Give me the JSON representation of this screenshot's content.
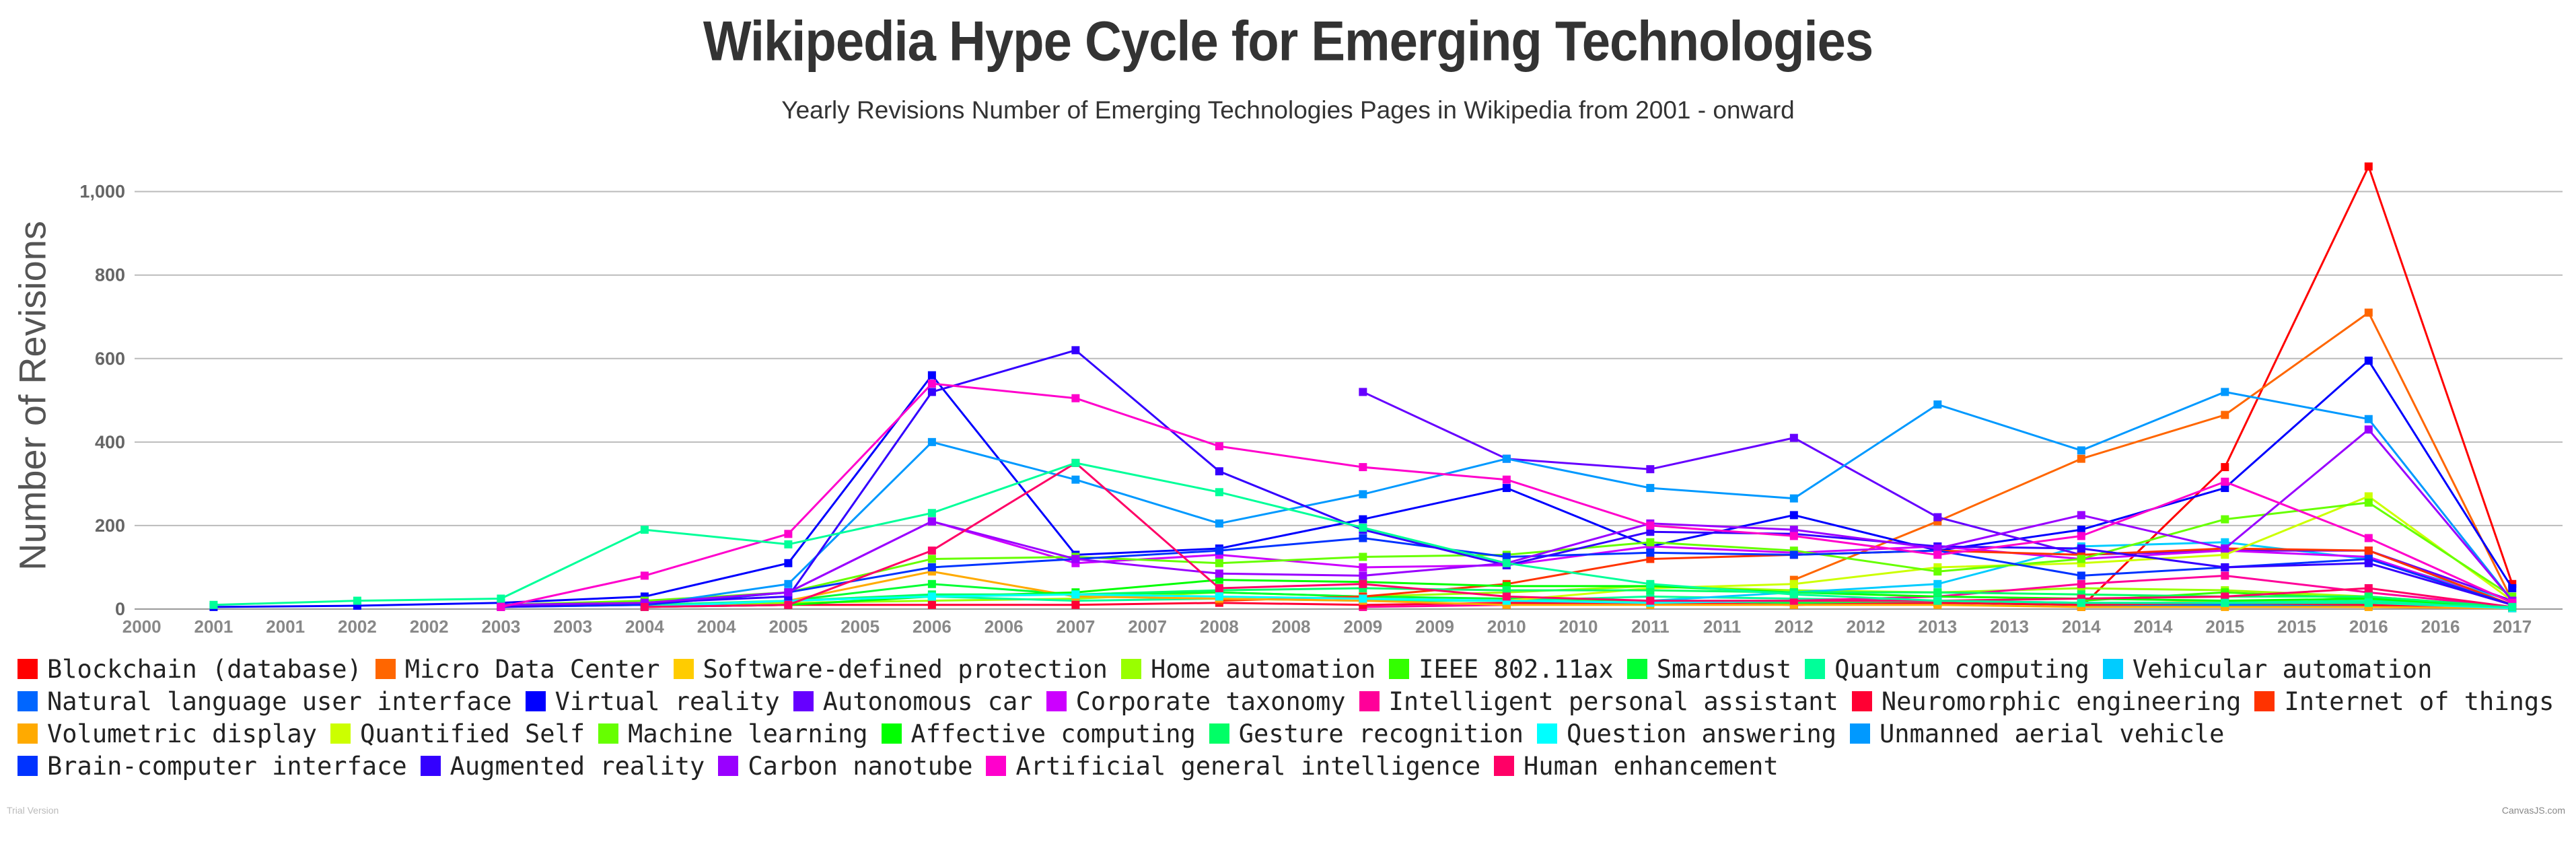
{
  "chart_data": {
    "type": "line",
    "title": "Wikipedia Hype Cycle for Emerging Technologies",
    "subtitle": "Yearly Revisions Number of Emerging Technologies Pages in Wikipedia from 2001 - onward",
    "ylabel": "Number of Revisions",
    "xlabel": "",
    "x": [
      2001,
      2002,
      2003,
      2004,
      2005,
      2006,
      2007,
      2008,
      2009,
      2010,
      2011,
      2012,
      2013,
      2014,
      2015,
      2016,
      2017
    ],
    "x_tick_labels": [
      "2000",
      "2001",
      "2001",
      "2002",
      "2002",
      "2003",
      "2003",
      "2004",
      "2004",
      "2005",
      "2005",
      "2006",
      "2006",
      "2007",
      "2007",
      "2008",
      "2008",
      "2009",
      "2009",
      "2010",
      "2010",
      "2011",
      "2011",
      "2012",
      "2012",
      "2013",
      "2013",
      "2014",
      "2014",
      "2015",
      "2015",
      "2016",
      "2016",
      "2017"
    ],
    "y_ticks": [
      0,
      200,
      400,
      600,
      800,
      1000
    ],
    "y_tick_labels": [
      "0",
      "200",
      "400",
      "600",
      "800",
      "1,000"
    ],
    "ylim": [
      0,
      1080
    ],
    "grid": true,
    "legend_position": "bottom",
    "series": [
      {
        "name": "Blockchain (database)",
        "color": "#ff0000",
        "values": [
          null,
          null,
          null,
          null,
          null,
          null,
          null,
          null,
          null,
          null,
          null,
          null,
          null,
          5,
          340,
          1060,
          60
        ]
      },
      {
        "name": "Micro Data Center",
        "color": "#ff6600",
        "values": [
          null,
          null,
          null,
          null,
          null,
          null,
          null,
          null,
          null,
          null,
          null,
          70,
          210,
          360,
          465,
          710,
          20
        ]
      },
      {
        "name": "Software-defined protection",
        "color": "#ffcc00",
        "values": [
          null,
          null,
          null,
          null,
          null,
          null,
          null,
          null,
          null,
          null,
          null,
          null,
          null,
          10,
          20,
          15,
          5
        ]
      },
      {
        "name": "Home automation",
        "color": "#99ff00",
        "values": [
          null,
          null,
          null,
          5,
          15,
          20,
          25,
          40,
          30,
          40,
          55,
          45,
          40,
          50,
          45,
          30,
          5
        ]
      },
      {
        "name": "IEEE 802.11ax",
        "color": "#33ff00",
        "values": [
          null,
          null,
          null,
          null,
          null,
          null,
          null,
          null,
          null,
          null,
          null,
          null,
          null,
          20,
          40,
          25,
          5
        ]
      },
      {
        "name": "Smartdust",
        "color": "#00ff33",
        "values": [
          null,
          null,
          null,
          5,
          20,
          60,
          35,
          40,
          30,
          25,
          20,
          15,
          15,
          10,
          10,
          10,
          2
        ]
      },
      {
        "name": "Quantum computing",
        "color": "#00ff99",
        "values": [
          null,
          null,
          null,
          10,
          20,
          30,
          20,
          25,
          20,
          20,
          30,
          25,
          20,
          15,
          15,
          20,
          5
        ]
      },
      {
        "name": "Vehicular automation",
        "color": "#00ccff",
        "values": [
          null,
          null,
          null,
          null,
          null,
          null,
          null,
          null,
          null,
          null,
          20,
          40,
          60,
          150,
          160,
          120,
          20
        ]
      },
      {
        "name": "Natural language user interface",
        "color": "#0066ff",
        "values": [
          null,
          null,
          null,
          null,
          null,
          null,
          null,
          null,
          null,
          10,
          15,
          10,
          15,
          10,
          10,
          10,
          2
        ]
      },
      {
        "name": "Virtual reality",
        "color": "#0000ff",
        "values": [
          5,
          8,
          15,
          30,
          110,
          560,
          130,
          145,
          215,
          290,
          150,
          225,
          140,
          190,
          290,
          595,
          50
        ]
      },
      {
        "name": "Autonomous car",
        "color": "#6600ff",
        "values": [
          null,
          null,
          null,
          null,
          null,
          null,
          null,
          null,
          520,
          360,
          335,
          410,
          220,
          130,
          140,
          140,
          20
        ]
      },
      {
        "name": "Corporate taxonomy",
        "color": "#cc00ff",
        "values": [
          null,
          null,
          5,
          10,
          40,
          210,
          110,
          130,
          100,
          105,
          150,
          135,
          150,
          120,
          140,
          125,
          10
        ]
      },
      {
        "name": "Intelligent personal assistant",
        "color": "#ff0099",
        "values": [
          null,
          null,
          null,
          null,
          null,
          null,
          null,
          null,
          5,
          10,
          15,
          20,
          30,
          60,
          80,
          40,
          5
        ]
      },
      {
        "name": "Neuromorphic engineering",
        "color": "#ff0033",
        "values": [
          null,
          null,
          null,
          5,
          10,
          10,
          10,
          15,
          10,
          15,
          15,
          10,
          15,
          10,
          15,
          10,
          2
        ]
      },
      {
        "name": "Internet of things",
        "color": "#ff3300",
        "values": [
          null,
          null,
          null,
          null,
          null,
          null,
          null,
          20,
          30,
          60,
          120,
          130,
          140,
          130,
          145,
          140,
          10
        ]
      },
      {
        "name": "Volumetric display",
        "color": "#ffaa00",
        "values": [
          null,
          null,
          null,
          5,
          20,
          90,
          30,
          25,
          20,
          10,
          10,
          10,
          10,
          5,
          5,
          5,
          2
        ]
      },
      {
        "name": "Quantified Self",
        "color": "#ccff00",
        "values": [
          null,
          null,
          null,
          null,
          null,
          null,
          null,
          null,
          null,
          20,
          50,
          60,
          100,
          110,
          130,
          270,
          20
        ]
      },
      {
        "name": "Machine learning",
        "color": "#66ff00",
        "values": [
          null,
          null,
          10,
          20,
          40,
          120,
          125,
          110,
          125,
          130,
          160,
          140,
          90,
          120,
          215,
          255,
          30
        ]
      },
      {
        "name": "Affective computing",
        "color": "#00ff00",
        "values": [
          null,
          null,
          null,
          5,
          10,
          30,
          40,
          70,
          65,
          55,
          55,
          40,
          30,
          25,
          20,
          25,
          5
        ]
      },
      {
        "name": "Gesture recognition",
        "color": "#00ff66",
        "values": [
          null,
          null,
          null,
          5,
          20,
          35,
          35,
          45,
          50,
          45,
          45,
          40,
          40,
          35,
          30,
          30,
          5
        ]
      },
      {
        "name": "Question answering",
        "color": "#00ffff",
        "values": [
          null,
          null,
          null,
          5,
          20,
          30,
          35,
          30,
          25,
          20,
          15,
          20,
          20,
          15,
          15,
          15,
          2
        ]
      },
      {
        "name": "Unmanned aerial vehicle",
        "color": "#0099ff",
        "values": [
          null,
          null,
          null,
          10,
          60,
          400,
          310,
          205,
          275,
          360,
          290,
          265,
          490,
          380,
          520,
          455,
          20
        ]
      },
      {
        "name": "Brain-computer interface",
        "color": "#0033ff",
        "values": [
          null,
          null,
          5,
          10,
          40,
          100,
          120,
          140,
          170,
          125,
          135,
          130,
          140,
          80,
          100,
          120,
          10
        ]
      },
      {
        "name": "Augmented reality",
        "color": "#3300ff",
        "values": [
          null,
          null,
          5,
          15,
          30,
          520,
          620,
          330,
          190,
          105,
          185,
          180,
          150,
          145,
          100,
          110,
          10
        ]
      },
      {
        "name": "Carbon nanotube",
        "color": "#9900ff",
        "values": [
          null,
          null,
          10,
          15,
          40,
          210,
          120,
          85,
          80,
          110,
          205,
          190,
          145,
          225,
          145,
          430,
          20
        ]
      },
      {
        "name": "Artificial general intelligence",
        "color": "#ff00cc",
        "values": [
          null,
          null,
          5,
          80,
          180,
          540,
          505,
          390,
          340,
          310,
          200,
          175,
          130,
          175,
          305,
          170,
          15
        ]
      },
      {
        "name": "Human enhancement",
        "color": "#ff0066",
        "values": [
          null,
          null,
          null,
          5,
          10,
          140,
          350,
          50,
          60,
          30,
          20,
          20,
          20,
          25,
          30,
          50,
          5
        ]
      },
      {
        "name": "",
        "color": "#00ff99",
        "values": [
          10,
          20,
          25,
          190,
          155,
          230,
          350,
          280,
          195,
          110,
          60,
          35,
          20,
          15,
          15,
          15,
          5
        ]
      }
    ]
  },
  "footer": {
    "left_mark": "Trial Version",
    "credit": "CanvasJS.com"
  }
}
